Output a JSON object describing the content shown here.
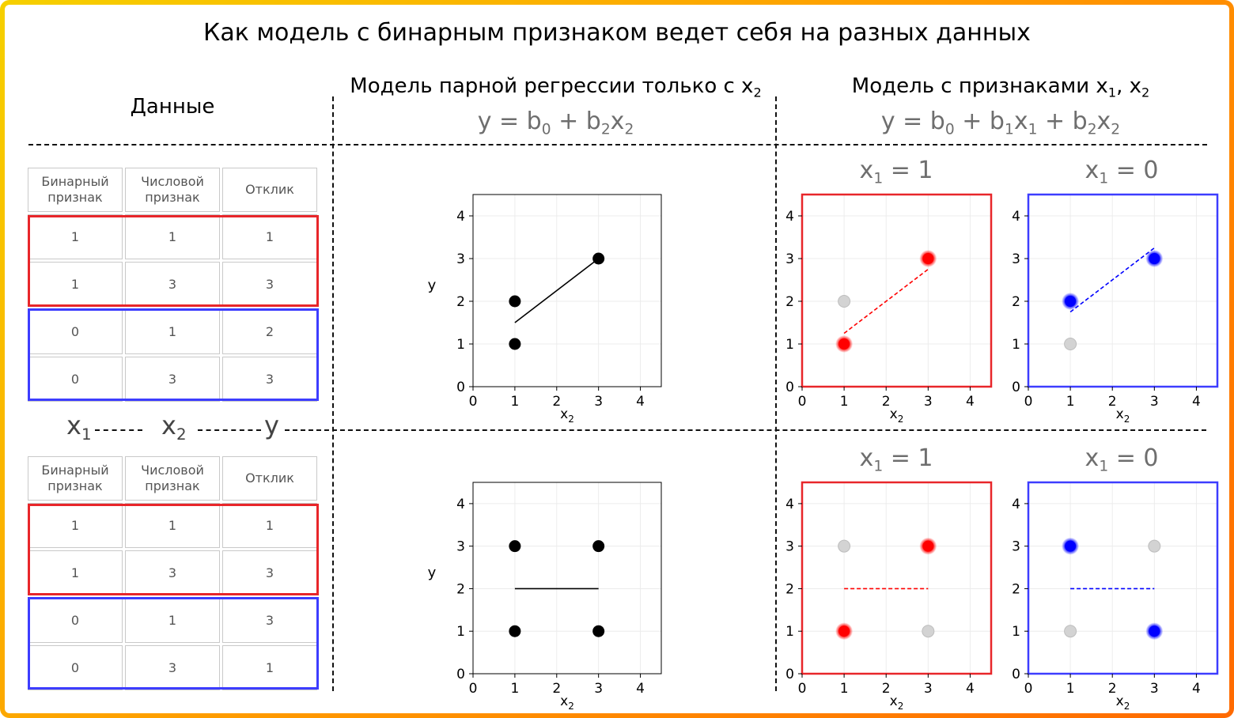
{
  "title": "Как модель с бинарным признаком ведет себя на разных данных",
  "headers": {
    "data": "Данные",
    "pair_model": "Модель парной регрессии только с x",
    "pair_model_sub": "2",
    "full_model": "Модель с признаками x",
    "full_model_sub1": "1",
    "full_model_mid": ", x",
    "full_model_sub2": "2"
  },
  "formulas": {
    "pair": {
      "a": "y = b",
      "s1": "0",
      "b": " + b",
      "s2": "2",
      "c": "x",
      "s3": "2"
    },
    "full": {
      "a": "y = b",
      "s1": "0",
      "b": " + b",
      "s2": "1",
      "c": "x",
      "s3": "1",
      "d": " + b",
      "s4": "2",
      "e": "x",
      "s5": "2"
    }
  },
  "table_headers": [
    "Бинарный признак",
    "Числовой признак",
    "Отклик"
  ],
  "tables": [
    {
      "rows": [
        [
          "1",
          "1",
          "1"
        ],
        [
          "1",
          "3",
          "3"
        ],
        [
          "0",
          "1",
          "2"
        ],
        [
          "0",
          "3",
          "3"
        ]
      ]
    },
    {
      "rows": [
        [
          "1",
          "1",
          "1"
        ],
        [
          "1",
          "3",
          "3"
        ],
        [
          "0",
          "1",
          "3"
        ],
        [
          "0",
          "3",
          "1"
        ]
      ]
    }
  ],
  "var_labels": {
    "x": "x",
    "s1": "1",
    "s2": "2",
    "y": "y"
  },
  "facets": {
    "one": "x",
    "one_sub": "1",
    "one_eq": " = 1",
    "zero": "x",
    "zero_sub": "1",
    "zero_eq": " = 0"
  },
  "axes": {
    "xlabel": "x",
    "xlabel_sub": "2",
    "ylabel": "y",
    "ticks": [
      "0",
      "1",
      "2",
      "3",
      "4"
    ]
  },
  "colors": {
    "red": "#e8262a",
    "blue": "#3d3dff",
    "gray": "#c8c8c8",
    "black": "#000000"
  },
  "chart_data": [
    {
      "type": "scatter",
      "row": 1,
      "panel": "pair",
      "xlim": [
        0,
        4.5
      ],
      "ylim": [
        0,
        4.5
      ],
      "points": [
        {
          "x": 1,
          "y": 1,
          "c": "black"
        },
        {
          "x": 1,
          "y": 2,
          "c": "black"
        },
        {
          "x": 3,
          "y": 3,
          "c": "black"
        }
      ],
      "line": {
        "x1": 1,
        "y1": 1.5,
        "x2": 3,
        "y2": 3,
        "c": "black",
        "dash": false
      }
    },
    {
      "type": "scatter",
      "row": 1,
      "panel": "x1=1",
      "xlim": [
        0,
        4.5
      ],
      "ylim": [
        0,
        4.5
      ],
      "points": [
        {
          "x": 1,
          "y": 1,
          "c": "red"
        },
        {
          "x": 3,
          "y": 3,
          "c": "red"
        },
        {
          "x": 1,
          "y": 2,
          "c": "gray"
        }
      ],
      "line": {
        "x1": 1,
        "y1": 1.25,
        "x2": 3,
        "y2": 2.75,
        "c": "red",
        "dash": true
      }
    },
    {
      "type": "scatter",
      "row": 1,
      "panel": "x1=0",
      "xlim": [
        0,
        4.5
      ],
      "ylim": [
        0,
        4.5
      ],
      "points": [
        {
          "x": 1,
          "y": 2,
          "c": "blue"
        },
        {
          "x": 3,
          "y": 3,
          "c": "blue"
        },
        {
          "x": 1,
          "y": 1,
          "c": "gray"
        }
      ],
      "line": {
        "x1": 1,
        "y1": 1.75,
        "x2": 3,
        "y2": 3.25,
        "c": "blue",
        "dash": true
      }
    },
    {
      "type": "scatter",
      "row": 2,
      "panel": "pair",
      "xlim": [
        0,
        4.5
      ],
      "ylim": [
        0,
        4.5
      ],
      "points": [
        {
          "x": 1,
          "y": 1,
          "c": "black"
        },
        {
          "x": 1,
          "y": 3,
          "c": "black"
        },
        {
          "x": 3,
          "y": 1,
          "c": "black"
        },
        {
          "x": 3,
          "y": 3,
          "c": "black"
        }
      ],
      "line": {
        "x1": 1,
        "y1": 2,
        "x2": 3,
        "y2": 2,
        "c": "black",
        "dash": false
      }
    },
    {
      "type": "scatter",
      "row": 2,
      "panel": "x1=1",
      "xlim": [
        0,
        4.5
      ],
      "ylim": [
        0,
        4.5
      ],
      "points": [
        {
          "x": 1,
          "y": 1,
          "c": "red"
        },
        {
          "x": 3,
          "y": 3,
          "c": "red"
        },
        {
          "x": 1,
          "y": 3,
          "c": "gray"
        },
        {
          "x": 3,
          "y": 1,
          "c": "gray"
        }
      ],
      "line": {
        "x1": 1,
        "y1": 2,
        "x2": 3,
        "y2": 2,
        "c": "red",
        "dash": true
      }
    },
    {
      "type": "scatter",
      "row": 2,
      "panel": "x1=0",
      "xlim": [
        0,
        4.5
      ],
      "ylim": [
        0,
        4.5
      ],
      "points": [
        {
          "x": 1,
          "y": 3,
          "c": "blue"
        },
        {
          "x": 3,
          "y": 1,
          "c": "blue"
        },
        {
          "x": 1,
          "y": 1,
          "c": "gray"
        },
        {
          "x": 3,
          "y": 3,
          "c": "gray"
        }
      ],
      "line": {
        "x1": 1,
        "y1": 2,
        "x2": 3,
        "y2": 2,
        "c": "blue",
        "dash": true
      }
    }
  ]
}
